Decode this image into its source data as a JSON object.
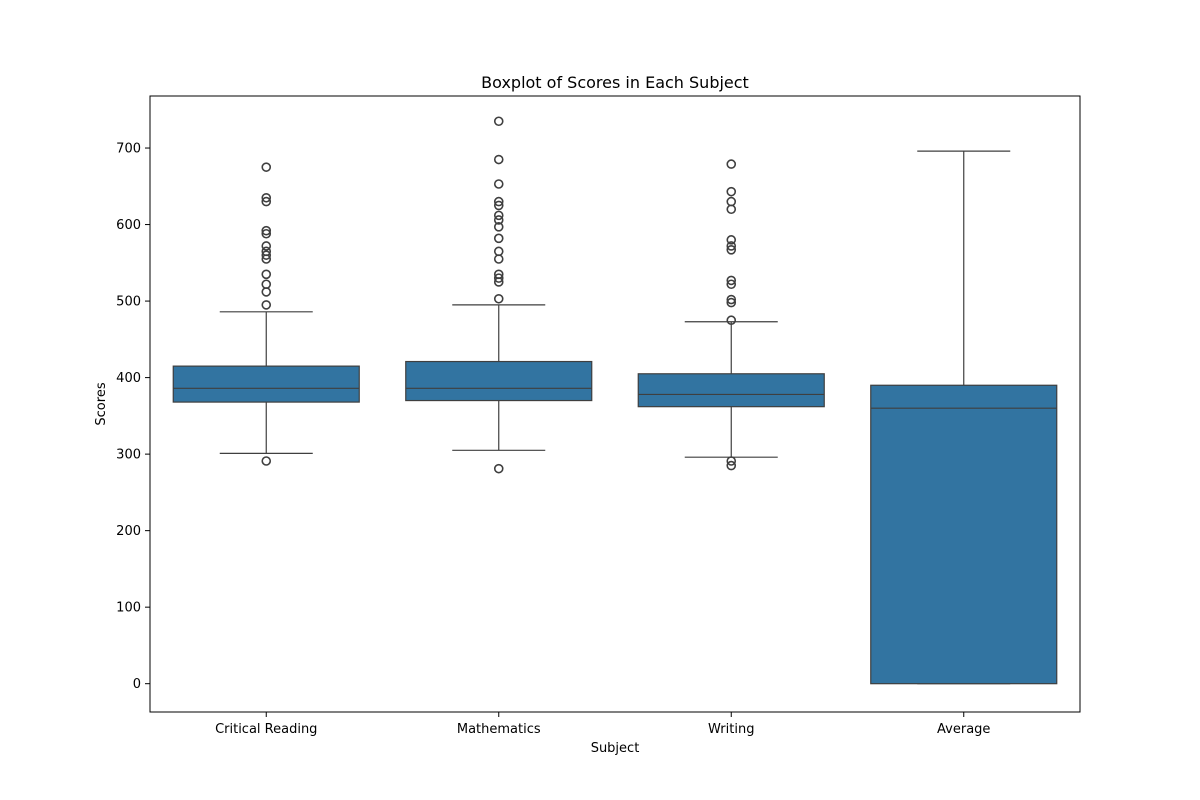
{
  "chart_data": {
    "type": "box",
    "title": "Boxplot of Scores in Each Subject",
    "xlabel": "Subject",
    "ylabel": "Scores",
    "ylim": [
      -37,
      768
    ],
    "yticks": [
      0,
      100,
      200,
      300,
      400,
      500,
      600,
      700
    ],
    "grid": false,
    "box_color": "#3274a1",
    "line_color": "#3f3f3f",
    "categories": [
      "Critical Reading",
      "Mathematics",
      "Writing",
      "Average"
    ],
    "boxes": [
      {
        "category": "Critical Reading",
        "whisker_low": 301,
        "q1": 368,
        "median": 386,
        "q3": 415,
        "whisker_high": 486,
        "outliers": [
          291,
          495,
          512,
          522,
          535,
          555,
          560,
          565,
          572,
          588,
          592,
          630,
          635,
          675
        ]
      },
      {
        "category": "Mathematics",
        "whisker_low": 305,
        "q1": 370,
        "median": 386,
        "q3": 421,
        "whisker_high": 495,
        "outliers": [
          281,
          503,
          525,
          530,
          535,
          555,
          565,
          582,
          597,
          606,
          612,
          625,
          630,
          653,
          685,
          735
        ]
      },
      {
        "category": "Writing",
        "whisker_low": 296,
        "q1": 362,
        "median": 378,
        "q3": 405,
        "whisker_high": 473,
        "outliers": [
          285,
          291,
          475,
          498,
          502,
          522,
          527,
          567,
          572,
          580,
          620,
          630,
          643,
          679
        ]
      },
      {
        "category": "Average",
        "whisker_low": 0,
        "q1": 0,
        "median": 360,
        "q3": 390,
        "whisker_high": 696,
        "outliers": []
      }
    ]
  }
}
